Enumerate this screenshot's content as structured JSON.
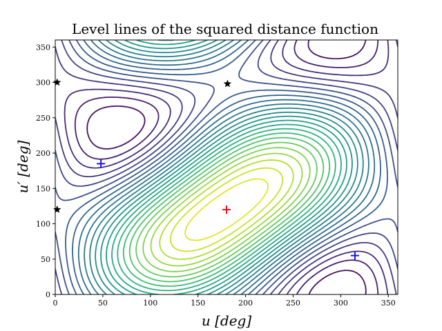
{
  "chart_data": {
    "type": "contour",
    "title": "Level lines of the squared distance function",
    "xlabel": "u [deg]",
    "ylabel": "u′ [deg]",
    "xlim": [
      0,
      360
    ],
    "ylim": [
      0,
      360
    ],
    "xticks": [
      0,
      50,
      100,
      150,
      200,
      250,
      300,
      350
    ],
    "yticks": [
      0,
      50,
      100,
      150,
      200,
      250,
      300,
      350
    ],
    "colormap": "viridis",
    "grid": false,
    "contour_center": {
      "x": 180,
      "y": 120
    },
    "markers": {
      "minimum": {
        "symbol": "+",
        "color": "#e8141c",
        "points": [
          [
            180,
            120
          ]
        ]
      },
      "saddle_points": {
        "symbol": "+",
        "color": "#1414e6",
        "points": [
          [
            48,
            185
          ],
          [
            315,
            55
          ]
        ]
      },
      "critical_points": {
        "symbol": "star",
        "color": "#000000",
        "points": [
          [
            2,
            300
          ],
          [
            2,
            120
          ],
          [
            181,
            298
          ]
        ]
      }
    }
  }
}
